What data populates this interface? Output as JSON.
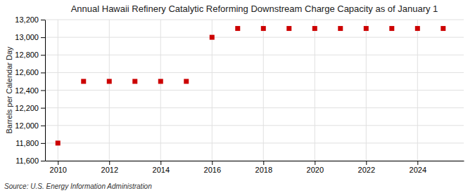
{
  "chart_data": {
    "type": "scatter",
    "title": "Annual Hawaii Refinery Catalytic Reforming Downstream Charge Capacity as of January 1",
    "ylabel": "Barrels per Calendar Day",
    "annotations": [
      "Source: U.S. Energy Information Administration"
    ],
    "x": [
      2010,
      2011,
      2012,
      2013,
      2014,
      2015,
      2016,
      2017,
      2018,
      2019,
      2020,
      2021,
      2022,
      2023,
      2024,
      2025
    ],
    "values": [
      11800,
      12500,
      12500,
      12500,
      12500,
      12500,
      13000,
      13100,
      13100,
      13100,
      13100,
      13100,
      13100,
      13100,
      13100,
      13100
    ],
    "color": "#cc0000",
    "marker": "square",
    "xlim": [
      2009.5,
      2025.8
    ],
    "ylim": [
      11600,
      13200
    ],
    "xticks": [
      2010,
      2012,
      2014,
      2016,
      2018,
      2020,
      2022,
      2024
    ],
    "yticks": [
      {
        "value": 11600,
        "label": "11,600"
      },
      {
        "value": 11800,
        "label": "11,800"
      },
      {
        "value": 12000,
        "label": "12,000"
      },
      {
        "value": 12200,
        "label": "12,200"
      },
      {
        "value": 12400,
        "label": "12,400"
      },
      {
        "value": 12600,
        "label": "12,600"
      },
      {
        "value": 12800,
        "label": "12,800"
      },
      {
        "value": 13000,
        "label": "13,000"
      },
      {
        "value": 13200,
        "label": "13,200"
      }
    ],
    "grid": true
  }
}
